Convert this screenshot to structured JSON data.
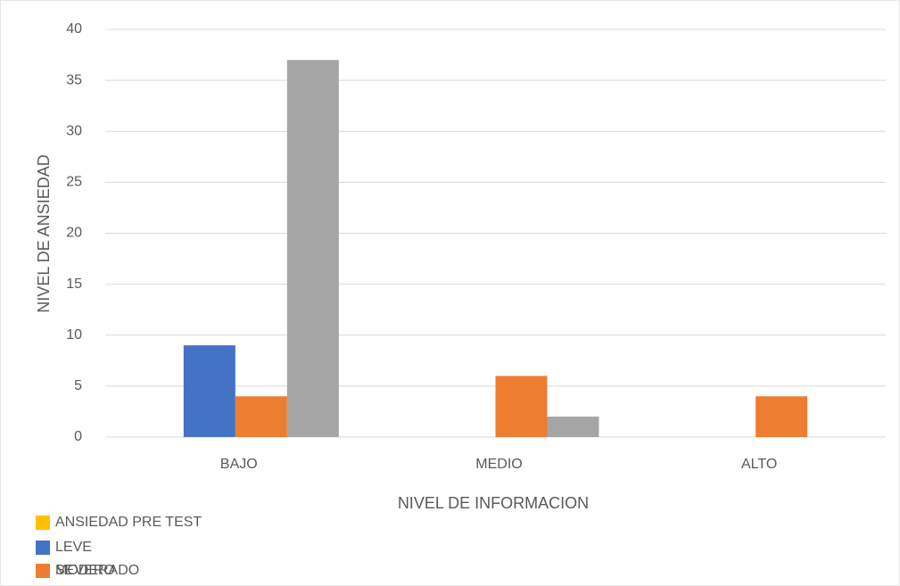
{
  "chart_data": {
    "type": "bar",
    "x_label": "NIVEL DE INFORMACION",
    "y_label": "NIVEL DE ANSIEDAD",
    "categories": [
      "BAJO",
      "MEDIO",
      "ALTO"
    ],
    "series": [
      {
        "name": "ANSIEDAD PRE TEST",
        "color": "#ffc000",
        "values": [
          null,
          null,
          null
        ]
      },
      {
        "name": "LEVE",
        "color": "#4472c4",
        "values": [
          9,
          null,
          null
        ]
      },
      {
        "name": "MODERADO",
        "color": "#ed7d31",
        "values": [
          4,
          6,
          4
        ]
      },
      {
        "name": "SEVERO",
        "color": "#a5a5a5",
        "values": [
          37,
          2,
          null
        ]
      }
    ],
    "ylim": [
      0,
      40
    ],
    "yticks": [
      0,
      5,
      10,
      15,
      20,
      25,
      30,
      35,
      40
    ],
    "grid": true,
    "legend": "bottom-left"
  }
}
